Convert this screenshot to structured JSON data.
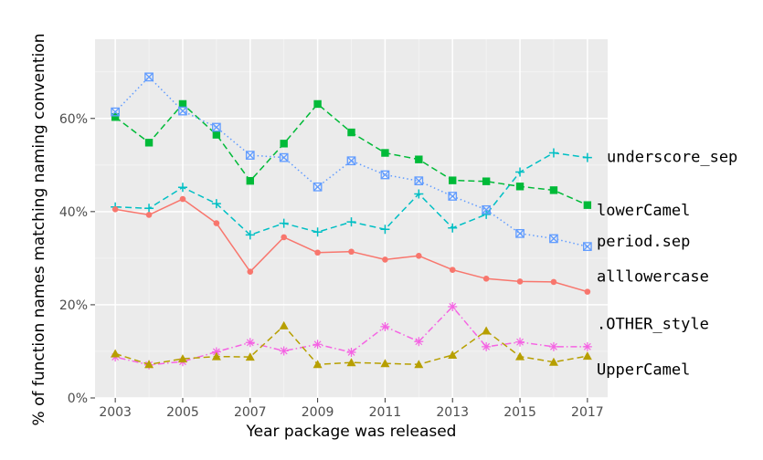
{
  "chart_data": {
    "type": "line",
    "title": "",
    "xlabel": "Year package was released",
    "ylabel": "% of function names matching naming convention",
    "x": [
      2003,
      2004,
      2005,
      2006,
      2007,
      2008,
      2009,
      2010,
      2011,
      2012,
      2013,
      2014,
      2015,
      2016,
      2017
    ],
    "xticks": [
      2003,
      2005,
      2007,
      2009,
      2011,
      2013,
      2015,
      2017
    ],
    "xlim": [
      2002.4,
      2017.6
    ],
    "ylim": [
      0,
      77
    ],
    "yticks": [
      {
        "value": 0,
        "label": "0%"
      },
      {
        "value": 20,
        "label": "20%"
      },
      {
        "value": 40,
        "label": "40%"
      },
      {
        "value": 60,
        "label": "60%"
      }
    ],
    "grid": true,
    "panel_background": "#ebebeb",
    "legend": "direct labels at right end of lines",
    "series": [
      {
        "name": "underscore_sep",
        "color": "#00bfc4",
        "dash": "dashed",
        "marker": "plus",
        "values": [
          41.0,
          40.7,
          45.2,
          41.7,
          35.0,
          37.5,
          35.6,
          37.8,
          36.2,
          43.8,
          36.5,
          39.4,
          48.5,
          52.6,
          51.6
        ],
        "label_y": 51.6
      },
      {
        "name": "lowerCamel",
        "color": "#00ba38",
        "dash": "dashed",
        "marker": "square",
        "values": [
          60.3,
          54.8,
          63.1,
          56.5,
          46.6,
          54.6,
          63.1,
          57.0,
          52.6,
          51.2,
          46.7,
          46.5,
          45.4,
          44.6,
          41.4
        ],
        "label_y": 40.2
      },
      {
        "name": "period.sep",
        "color": "#619cff",
        "dash": "dotted",
        "marker": "crossed-square",
        "values": [
          61.4,
          68.9,
          61.6,
          58.1,
          52.1,
          51.6,
          45.3,
          50.9,
          47.9,
          46.6,
          43.3,
          40.4,
          35.3,
          34.2,
          32.5
        ],
        "label_y": 33.5
      },
      {
        "name": "alllowercase",
        "color": "#f8766d",
        "dash": "solid",
        "marker": "dot",
        "values": [
          40.5,
          39.3,
          42.7,
          37.5,
          27.1,
          34.5,
          31.2,
          31.4,
          29.7,
          30.5,
          27.5,
          25.6,
          25.0,
          24.9,
          22.8
        ],
        "label_y": 26.0
      },
      {
        "name": ".OTHER_style",
        "color": "#f564e3",
        "dash": "dotdash",
        "marker": "asterisk",
        "values": [
          8.8,
          7.1,
          7.8,
          9.9,
          11.9,
          10.1,
          11.5,
          9.8,
          15.3,
          12.1,
          19.6,
          11.0,
          12.0,
          11.0,
          11.0
        ],
        "label_y": 15.8
      },
      {
        "name": "UpperCamel",
        "color": "#b79f00",
        "dash": "dashed",
        "marker": "triangle",
        "values": [
          9.5,
          7.2,
          8.4,
          8.9,
          8.8,
          15.5,
          7.2,
          7.6,
          7.4,
          7.2,
          9.2,
          14.4,
          8.9,
          7.7,
          9.0
        ],
        "label_y": 6.0
      }
    ]
  }
}
